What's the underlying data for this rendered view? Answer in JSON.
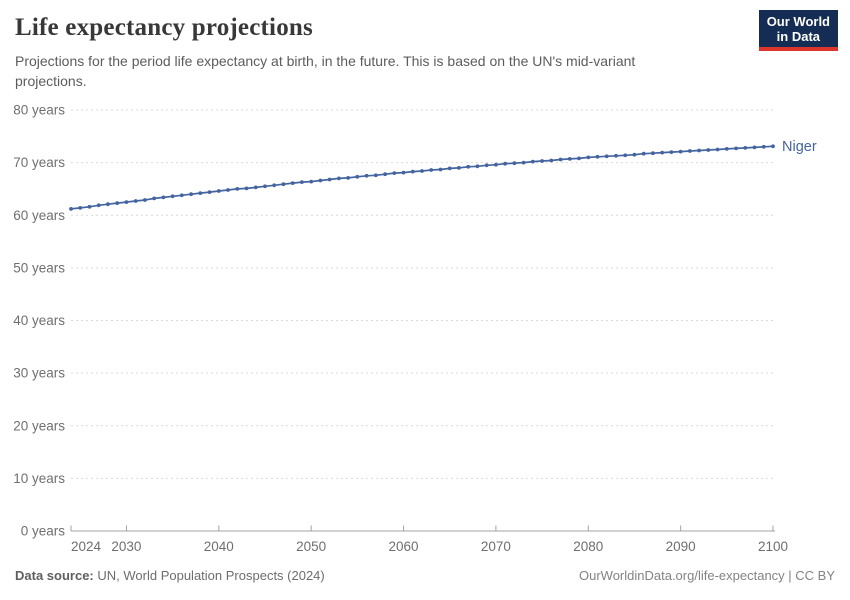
{
  "header": {
    "title": "Life expectancy projections",
    "subtitle": "Projections for the period life expectancy at birth, in the future. This is based on the UN's mid-variant projections."
  },
  "logo": {
    "line1": "Our World",
    "line2": "in Data",
    "bg_color": "#152d54",
    "accent_color": "#dc352b"
  },
  "footer": {
    "datasource_label": "Data source:",
    "datasource_value": "UN, World Population Prospects (2024)",
    "credit": "OurWorldinData.org/life-expectancy | CC BY"
  },
  "chart_data": {
    "type": "line",
    "title": "Life expectancy projections",
    "xlabel": "",
    "ylabel": "",
    "xlim": [
      2024,
      2100
    ],
    "ylim": [
      0,
      80
    ],
    "x_ticks": [
      2024,
      2030,
      2040,
      2050,
      2060,
      2070,
      2080,
      2090,
      2100
    ],
    "y_ticks": [
      0,
      10,
      20,
      30,
      40,
      50,
      60,
      70,
      80
    ],
    "y_tick_labels": [
      "0 years",
      "10 years",
      "20 years",
      "30 years",
      "40 years",
      "50 years",
      "60 years",
      "70 years",
      "80 years"
    ],
    "grid": "horizontal-dashed",
    "legend_position": "end-of-line-label",
    "colors": {
      "line": "#4464a0",
      "grid": "#d9d9d9",
      "axis": "#a3a3a3",
      "tick_label": "#6f6f6f"
    },
    "series": [
      {
        "name": "Niger",
        "color": "#4464a0",
        "marker": "dot",
        "x": [
          2024,
          2025,
          2026,
          2027,
          2028,
          2029,
          2030,
          2031,
          2032,
          2033,
          2034,
          2035,
          2036,
          2037,
          2038,
          2039,
          2040,
          2041,
          2042,
          2043,
          2044,
          2045,
          2046,
          2047,
          2048,
          2049,
          2050,
          2051,
          2052,
          2053,
          2054,
          2055,
          2056,
          2057,
          2058,
          2059,
          2060,
          2061,
          2062,
          2063,
          2064,
          2065,
          2066,
          2067,
          2068,
          2069,
          2070,
          2071,
          2072,
          2073,
          2074,
          2075,
          2076,
          2077,
          2078,
          2079,
          2080,
          2081,
          2082,
          2083,
          2084,
          2085,
          2086,
          2087,
          2088,
          2089,
          2090,
          2091,
          2092,
          2093,
          2094,
          2095,
          2096,
          2097,
          2098,
          2099,
          2100
        ],
        "values": [
          61.2,
          61.4,
          61.6,
          61.9,
          62.1,
          62.3,
          62.5,
          62.7,
          62.9,
          63.2,
          63.4,
          63.6,
          63.8,
          64.0,
          64.2,
          64.4,
          64.6,
          64.8,
          65.0,
          65.1,
          65.3,
          65.5,
          65.7,
          65.9,
          66.1,
          66.3,
          66.4,
          66.6,
          66.8,
          67.0,
          67.1,
          67.3,
          67.5,
          67.6,
          67.8,
          68.0,
          68.1,
          68.3,
          68.4,
          68.6,
          68.7,
          68.9,
          69.0,
          69.2,
          69.3,
          69.5,
          69.6,
          69.8,
          69.9,
          70.0,
          70.2,
          70.3,
          70.4,
          70.6,
          70.7,
          70.8,
          71.0,
          71.1,
          71.2,
          71.3,
          71.4,
          71.5,
          71.7,
          71.8,
          71.9,
          72.0,
          72.1,
          72.2,
          72.3,
          72.4,
          72.5,
          72.6,
          72.7,
          72.8,
          72.9,
          73.0,
          73.1
        ]
      }
    ]
  }
}
